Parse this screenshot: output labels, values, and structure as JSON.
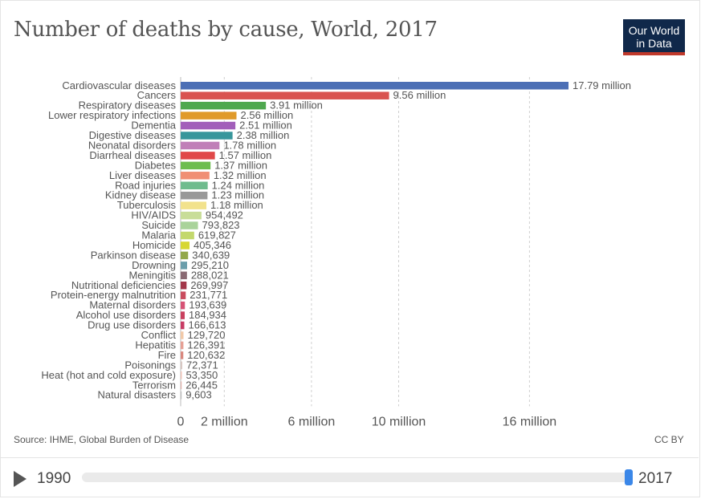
{
  "title": "Number of deaths by cause, World, 2017",
  "logo": {
    "line1": "Our World",
    "line2": "in Data"
  },
  "source": "Source: IHME, Global Burden of Disease",
  "license": "CC BY",
  "timeline": {
    "start_year": "1990",
    "end_year": "2017",
    "selected_fraction": 1.0
  },
  "chart_data": {
    "type": "bar",
    "orientation": "horizontal",
    "xlim": [
      0,
      17790000
    ],
    "xticks": [
      {
        "label": "0",
        "value": 0
      },
      {
        "label": "2 million",
        "value": 2000000
      },
      {
        "label": "6 million",
        "value": 6000000
      },
      {
        "label": "10 million",
        "value": 10000000
      },
      {
        "label": "16 million",
        "value": 16000000
      }
    ],
    "grid": true,
    "categories": [
      "Cardiovascular diseases",
      "Cancers",
      "Respiratory diseases",
      "Lower respiratory infections",
      "Dementia",
      "Digestive diseases",
      "Neonatal disorders",
      "Diarrheal diseases",
      "Diabetes",
      "Liver diseases",
      "Road injuries",
      "Kidney disease",
      "Tuberculosis",
      "HIV/AIDS",
      "Suicide",
      "Malaria",
      "Homicide",
      "Parkinson disease",
      "Drowning",
      "Meningitis",
      "Nutritional deficiencies",
      "Protein-energy malnutrition",
      "Maternal disorders",
      "Alcohol use disorders",
      "Drug use disorders",
      "Conflict",
      "Hepatitis",
      "Fire",
      "Poisonings",
      "Heat (hot and cold exposure)",
      "Terrorism",
      "Natural disasters"
    ],
    "values": [
      17790000,
      9560000,
      3910000,
      2560000,
      2510000,
      2380000,
      1780000,
      1570000,
      1370000,
      1320000,
      1240000,
      1230000,
      1180000,
      954492,
      793823,
      619827,
      405346,
      340639,
      295210,
      288021,
      269997,
      231771,
      193639,
      184934,
      166613,
      129720,
      126391,
      120632,
      72371,
      53350,
      26445,
      9603
    ],
    "value_labels": [
      "17.79 million",
      "9.56 million",
      "3.91 million",
      "2.56 million",
      "2.51 million",
      "2.38 million",
      "1.78 million",
      "1.57 million",
      "1.37 million",
      "1.32 million",
      "1.24 million",
      "1.23 million",
      "1.18 million",
      "954,492",
      "793,823",
      "619,827",
      "405,346",
      "340,639",
      "295,210",
      "288,021",
      "269,997",
      "231,771",
      "193,639",
      "184,934",
      "166,613",
      "129,720",
      "126,391",
      "120,632",
      "72,371",
      "53,350",
      "26,445",
      "9,603"
    ],
    "colors": [
      "#4c6fb5",
      "#d9534f",
      "#4fa84f",
      "#e09a2a",
      "#a25fba",
      "#37969b",
      "#c07fb8",
      "#e04848",
      "#6cbd4f",
      "#f08f74",
      "#6fbc8e",
      "#999999",
      "#f2e28c",
      "#c8dd98",
      "#a9d39a",
      "#c3d86c",
      "#d7d734",
      "#93a84a",
      "#6b9eab",
      "#8a6a73",
      "#a3374a",
      "#c94c5e",
      "#d65275",
      "#c9405e",
      "#c83c64",
      "#f1c9a8",
      "#e6a095",
      "#d9877e",
      "#d7c7c2",
      "#efc1b4",
      "#e0b0a8",
      "#bbbbbb"
    ]
  }
}
